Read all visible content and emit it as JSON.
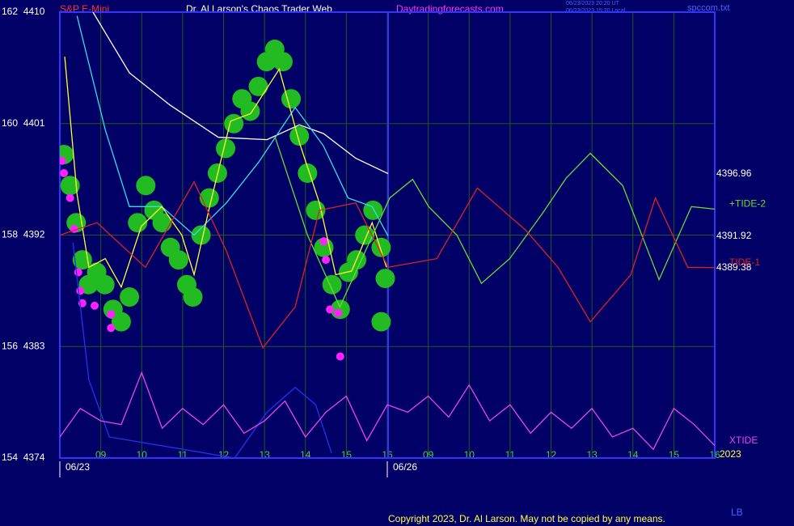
{
  "chart_data": {
    "type": "line",
    "symbol": "S&P E-Mini",
    "title": "Dr. Al Larson's Chaos Trader Web",
    "site": "Daytradingforecasts.com",
    "stamps": [
      "06/23/2023 20:20 UT",
      "06/23/2023 15:20 Local"
    ],
    "file": "spccom.txt",
    "year": "2023",
    "copyright": "Copyright 2023, Dr. Al Larson. May not be copied by any means.",
    "corner": "LB",
    "xlim": [
      0,
      16
    ],
    "ylim": [
      4374,
      4410
    ],
    "grid": true,
    "now_x": 8.02,
    "xticks": [
      {
        "value": 1,
        "label": "09"
      },
      {
        "value": 2,
        "label": "10"
      },
      {
        "value": 3,
        "label": "11"
      },
      {
        "value": 4,
        "label": "12"
      },
      {
        "value": 5,
        "label": "13"
      },
      {
        "value": 6,
        "label": "14"
      },
      {
        "value": 7,
        "label": "15"
      },
      {
        "value": 8,
        "label": "16"
      },
      {
        "value": 9,
        "label": "09"
      },
      {
        "value": 10,
        "label": "10"
      },
      {
        "value": 11,
        "label": "11"
      },
      {
        "value": 12,
        "label": "12"
      },
      {
        "value": 13,
        "label": "13"
      },
      {
        "value": 14,
        "label": "14"
      },
      {
        "value": 15,
        "label": "15"
      },
      {
        "value": 16,
        "label": "16"
      }
    ],
    "date_ticks": [
      {
        "value": 0,
        "label": "06/23"
      },
      {
        "value": 8,
        "label": "06/26"
      }
    ],
    "yticks": [
      {
        "value": 4410,
        "label": "162  4410"
      },
      {
        "value": 4401,
        "label": "160  4401"
      },
      {
        "value": 4392,
        "label": "158  4392"
      },
      {
        "value": 4383,
        "label": "156  4383"
      },
      {
        "value": 4374,
        "label": "154  4374"
      }
    ],
    "series": [
      {
        "color": "#22bb22",
        "style": "bubble",
        "x": [
          0.1,
          0.25,
          0.4,
          0.55,
          0.7,
          0.9,
          1.1,
          1.3,
          1.5,
          1.7,
          1.9,
          2.1,
          2.3,
          2.5,
          2.7,
          2.9,
          3.1,
          3.25,
          3.45,
          3.65,
          3.85,
          4.05,
          4.25,
          4.45,
          4.65,
          4.85,
          5.05,
          5.25,
          5.45,
          5.65,
          5.85,
          6.05,
          6.25,
          6.45,
          6.65,
          6.85,
          7.05,
          7.25,
          7.45,
          7.65,
          7.85,
          7.95,
          7.85
        ],
        "values": [
          4398.5,
          4396,
          4393,
          4390,
          4388,
          4389,
          4388,
          4386,
          4385,
          4387,
          4393,
          4396,
          4394,
          4393,
          4391,
          4390,
          4388,
          4387,
          4392,
          4395,
          4397,
          4399,
          4401,
          4403,
          4402,
          4404,
          4406,
          4407,
          4406,
          4403,
          4400,
          4397,
          4394,
          4391,
          4388,
          4386,
          4389,
          4390,
          4392,
          4394,
          4391,
          4388.5,
          4385
        ]
      },
      {
        "color": "#ff22ff",
        "style": "dot",
        "x": [
          0.05,
          0.1,
          0.25,
          0.35,
          0.45,
          0.5,
          0.55,
          0.85,
          1.25,
          1.25,
          6.45,
          6.5,
          6.6,
          6.8,
          6.85
        ],
        "values": [
          4398,
          4397,
          4395,
          4392.5,
          4389,
          4387.5,
          4386.5,
          4386.3,
          4384.5,
          4385.6,
          4391.5,
          4390,
          4386,
          4385.7,
          4382.2
        ]
      },
      {
        "color": "#ffffff",
        "style": "line",
        "end_label": true,
        "x": [
          0.81,
          1.7,
          2.69,
          3.87,
          5.06,
          5.85,
          6.44,
          7.23,
          8.02
        ],
        "values": [
          4410,
          4405.1,
          4402.5,
          4399.9,
          4399.7,
          4400.9,
          4400.2,
          4398.2,
          4396.96
        ]
      },
      {
        "color": "#33ddee",
        "style": "line",
        "end_label": true,
        "x": [
          0.42,
          1.11,
          1.7,
          2.49,
          3.28,
          4.07,
          4.86,
          5.75,
          6.44,
          7.04,
          7.63,
          8.02
        ],
        "values": [
          4409.7,
          4400.5,
          4394.3,
          4394.3,
          4392,
          4394.6,
          4397.9,
          4402.3,
          4399.2,
          4395,
          4394.3,
          4391.92
        ]
      },
      {
        "color": "#ffff33",
        "style": "line",
        "x": [
          0.12,
          0.42,
          0.71,
          1.11,
          1.5,
          1.99,
          2.49,
          2.98,
          3.28,
          3.68,
          4.17,
          4.66,
          5.36,
          5.85,
          6.34,
          6.74,
          7.13,
          7.63,
          7.98
        ],
        "values": [
          4406.4,
          4395.3,
          4389.4,
          4390.1,
          4387.8,
          4392.7,
          4394.3,
          4392,
          4388.8,
          4394.6,
          4401.2,
          4401.8,
          4405.4,
          4399.5,
          4394.6,
          4388.8,
          4389.1,
          4393,
          4389.4
        ]
      },
      {
        "name": "+TIDE-2",
        "color": "#66dd33",
        "style": "line",
        "x": [
          5.26,
          6.05,
          6.84,
          8.06,
          8.62,
          9.01,
          9.7,
          10.3,
          10.99,
          11.78,
          12.37,
          12.96,
          13.75,
          14.64,
          15.43,
          16
        ],
        "values": [
          4399.9,
          4392,
          4386.2,
          4395,
          4396.5,
          4394.3,
          4392,
          4388.1,
          4390.1,
          4393.7,
          4396.6,
          4398.6,
          4396,
          4388.4,
          4394.3,
          4394.1
        ]
      },
      {
        "name": "TIDE-1",
        "color": "#dd2222",
        "style": "line",
        "end_label": true,
        "x": [
          0,
          0.91,
          2.09,
          3.28,
          4.07,
          4.96,
          5.75,
          6.34,
          7.23,
          8.02,
          9.21,
          10.2,
          11.38,
          12.17,
          12.96,
          13.95,
          14.55,
          15.34,
          16
        ],
        "values": [
          4392,
          4393,
          4389.4,
          4396.3,
          4390.7,
          4382.9,
          4386.2,
          4394,
          4394.6,
          4389.4,
          4390.1,
          4395.8,
          4392.4,
          4389.4,
          4385,
          4388.8,
          4395,
          4389.4,
          4389.38
        ]
      },
      {
        "color": "#2233ee",
        "style": "line",
        "x": [
          0.32,
          0.71,
          1.21,
          4.27,
          5.06,
          5.75,
          6.25,
          6.64
        ],
        "values": [
          4391.4,
          4380.3,
          4375.7,
          4374,
          4377.7,
          4379.7,
          4378.3,
          4374.4
        ]
      },
      {
        "name": "XTIDE",
        "color": "#ee44ee",
        "style": "line",
        "x": [
          0,
          0.5,
          1,
          1.5,
          2,
          2.5,
          3,
          3.5,
          4,
          4.5,
          5,
          5.5,
          6,
          6.5,
          7,
          7.5,
          8,
          8.5,
          9,
          9.5,
          10,
          10.5,
          11,
          11.5,
          12,
          12.5,
          13,
          13.5,
          14,
          14.5,
          15,
          15.5,
          16
        ],
        "values": [
          4375.7,
          4378,
          4377,
          4376.7,
          4380.9,
          4376.4,
          4378,
          4376.7,
          4378.3,
          4376,
          4377,
          4378.6,
          4375.7,
          4377.7,
          4379,
          4375.4,
          4378.3,
          4377.7,
          4379,
          4377.3,
          4379.9,
          4377,
          4378.3,
          4376,
          4377.7,
          4376.4,
          4378,
          4375.7,
          4376.4,
          4374.7,
          4378,
          4376.7,
          4375
        ]
      }
    ]
  }
}
